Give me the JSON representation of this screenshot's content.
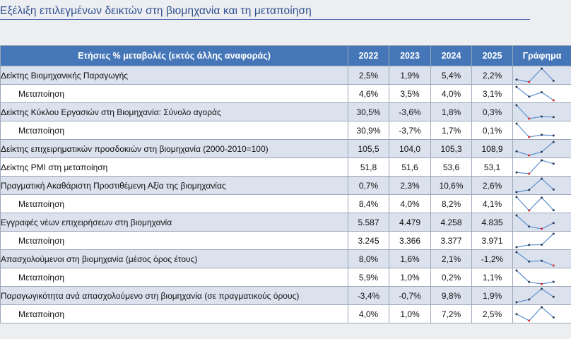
{
  "title": "Εξέλιξη επιλεγμένων δεικτών στη βιομηχανία και τη μεταποίηση",
  "table": {
    "header": {
      "label": "Ετήσιες % μεταβολές (εκτός άλλης αναφοράς)",
      "years": [
        "2022",
        "2023",
        "2024",
        "2025"
      ],
      "graph": "Γράφημα"
    },
    "rows": [
      {
        "label": "Δείκτης Βιομηχανικής Παραγωγής",
        "sub": false,
        "values": [
          "2,5%",
          "1,9%",
          "5,4%",
          "2,2%"
        ],
        "nums": [
          2.5,
          1.9,
          5.4,
          2.2
        ]
      },
      {
        "label": "Μεταποίηση",
        "sub": true,
        "values": [
          "4,6%",
          "3,5%",
          "4,0%",
          "3,1%"
        ],
        "nums": [
          4.6,
          3.5,
          4.0,
          3.1
        ]
      },
      {
        "label": "Δείκτης Κύκλου Εργασιών στη Βιομηχανία: Σύνολο αγοράς",
        "sub": false,
        "values": [
          "30,5%",
          "-3,6%",
          "1,8%",
          "0,3%"
        ],
        "nums": [
          30.5,
          -3.6,
          1.8,
          0.3
        ]
      },
      {
        "label": "Μεταποίηση",
        "sub": true,
        "values": [
          "30,9%",
          "-3,7%",
          "1,7%",
          "0,1%"
        ],
        "nums": [
          30.9,
          -3.7,
          1.7,
          0.1
        ]
      },
      {
        "label": "Δείκτης επιχειρηματικών προσδοκιών στη βιομηχανία (2000-2010=100)",
        "sub": false,
        "values": [
          "105,5",
          "104,0",
          "105,3",
          "108,9"
        ],
        "nums": [
          105.5,
          104.0,
          105.3,
          108.9
        ]
      },
      {
        "label": "Δείκτης PMI στη μεταποίηση",
        "sub": false,
        "values": [
          "51,8",
          "51,6",
          "53,6",
          "53,1"
        ],
        "nums": [
          51.8,
          51.6,
          53.6,
          53.1
        ]
      },
      {
        "label": "Πραγματική Ακαθάριστη Προστιθέμενη Αξία της βιομηχανίας",
        "sub": false,
        "values": [
          "0,7%",
          "2,3%",
          "10,6%",
          "2,6%"
        ],
        "nums": [
          0.7,
          2.3,
          10.6,
          2.6
        ]
      },
      {
        "label": "Μεταποίηση",
        "sub": true,
        "values": [
          "8,4%",
          "4,0%",
          "8,2%",
          "4,1%"
        ],
        "nums": [
          8.4,
          4.0,
          8.2,
          4.1
        ]
      },
      {
        "label": "Εγγραφές νέων επιχειρήσεων στη βιομηχανία",
        "sub": false,
        "values": [
          "5.587",
          "4.479",
          "4.258",
          "4.835"
        ],
        "nums": [
          5587,
          4479,
          4258,
          4835
        ]
      },
      {
        "label": "Μεταποίηση",
        "sub": true,
        "values": [
          "3.245",
          "3.366",
          "3.377",
          "3.971"
        ],
        "nums": [
          3245,
          3366,
          3377,
          3971
        ]
      },
      {
        "label": "Απασχολούμενοι στη βιομηχανία (μέσος όρος έτους)",
        "sub": false,
        "values": [
          "8,0%",
          "1,6%",
          "2,1%",
          "-1,2%"
        ],
        "nums": [
          8.0,
          1.6,
          2.1,
          -1.2
        ]
      },
      {
        "label": "Μεταποίηση",
        "sub": true,
        "values": [
          "5,9%",
          "1,0%",
          "0,2%",
          "1,1%"
        ],
        "nums": [
          5.9,
          1.0,
          0.2,
          1.1
        ]
      },
      {
        "label": "Παραγωγικότητα ανά απασχολούμενο στη βιομηχανία (σε πραγματικούς όρους)",
        "sub": false,
        "values": [
          "-3,4%",
          "-0,7%",
          "9,8%",
          "1,9%"
        ],
        "nums": [
          -3.4,
          -0.7,
          9.8,
          1.9
        ]
      },
      {
        "label": "Μεταποίηση",
        "sub": true,
        "values": [
          "4,0%",
          "1,0%",
          "7,2%",
          "2,5%"
        ],
        "nums": [
          4.0,
          1.0,
          7.2,
          2.5
        ]
      }
    ]
  },
  "colors": {
    "sparkline": "#5b8fd0",
    "marker": "#2a3850",
    "marker_low": "#e02020"
  }
}
